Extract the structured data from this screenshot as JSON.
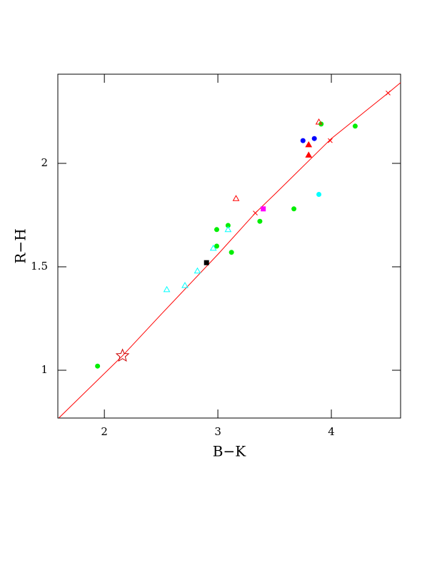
{
  "chart_data": {
    "type": "scatter",
    "x_label": "B−K",
    "y_label": "R−H",
    "xlim": [
      1.59,
      4.61
    ],
    "ylim": [
      0.769,
      2.431
    ],
    "xticks": [
      2,
      3,
      4
    ],
    "yticks": [
      1,
      1.5,
      2
    ],
    "series": [
      {
        "color": "#ff0000",
        "marker": "line",
        "x": [
          1.6,
          2.16,
          2.5,
          3.0,
          3.33,
          3.5,
          4.0,
          4.5,
          4.61
        ],
        "values": [
          0.77,
          1.07,
          1.27,
          1.56,
          1.76,
          1.85,
          2.12,
          2.34,
          2.39
        ]
      },
      {
        "color": "#00ee00",
        "marker": "circle",
        "x": [
          1.94,
          2.99,
          2.99,
          3.09,
          3.12,
          3.37,
          3.67,
          3.91,
          4.21
        ],
        "values": [
          1.02,
          1.68,
          1.6,
          1.7,
          1.57,
          1.72,
          1.78,
          2.19,
          2.18
        ]
      },
      {
        "color": "#0000ff",
        "marker": "circle",
        "x": [
          3.75,
          3.85
        ],
        "values": [
          2.11,
          2.12
        ]
      },
      {
        "color": "#00ffff",
        "marker": "circle",
        "x": [
          3.89
        ],
        "values": [
          1.85
        ]
      },
      {
        "color": "#ff00ff",
        "marker": "square",
        "x": [
          3.4
        ],
        "values": [
          1.78
        ]
      },
      {
        "color": "#000000",
        "marker": "square",
        "x": [
          2.9
        ],
        "values": [
          1.52
        ]
      },
      {
        "color": "#ff0000",
        "marker": "triangle",
        "x": [
          3.8,
          3.8
        ],
        "values": [
          2.09,
          2.04
        ]
      },
      {
        "color": "#ff0000",
        "marker": "open-triangle",
        "x": [
          3.16,
          3.89
        ],
        "values": [
          1.83,
          2.2
        ]
      },
      {
        "color": "#00ffff",
        "marker": "open-triangle",
        "x": [
          2.55,
          2.71,
          2.82,
          2.96,
          3.09
        ],
        "values": [
          1.39,
          1.41,
          1.48,
          1.59,
          1.68
        ]
      },
      {
        "color": "#cc0000",
        "marker": "star",
        "x": [
          2.16
        ],
        "values": [
          1.07
        ]
      },
      {
        "color": "#ff0000",
        "marker": "cross",
        "x": [
          3.33,
          3.99,
          4.5
        ],
        "values": [
          1.76,
          2.11,
          2.34
        ]
      }
    ]
  }
}
